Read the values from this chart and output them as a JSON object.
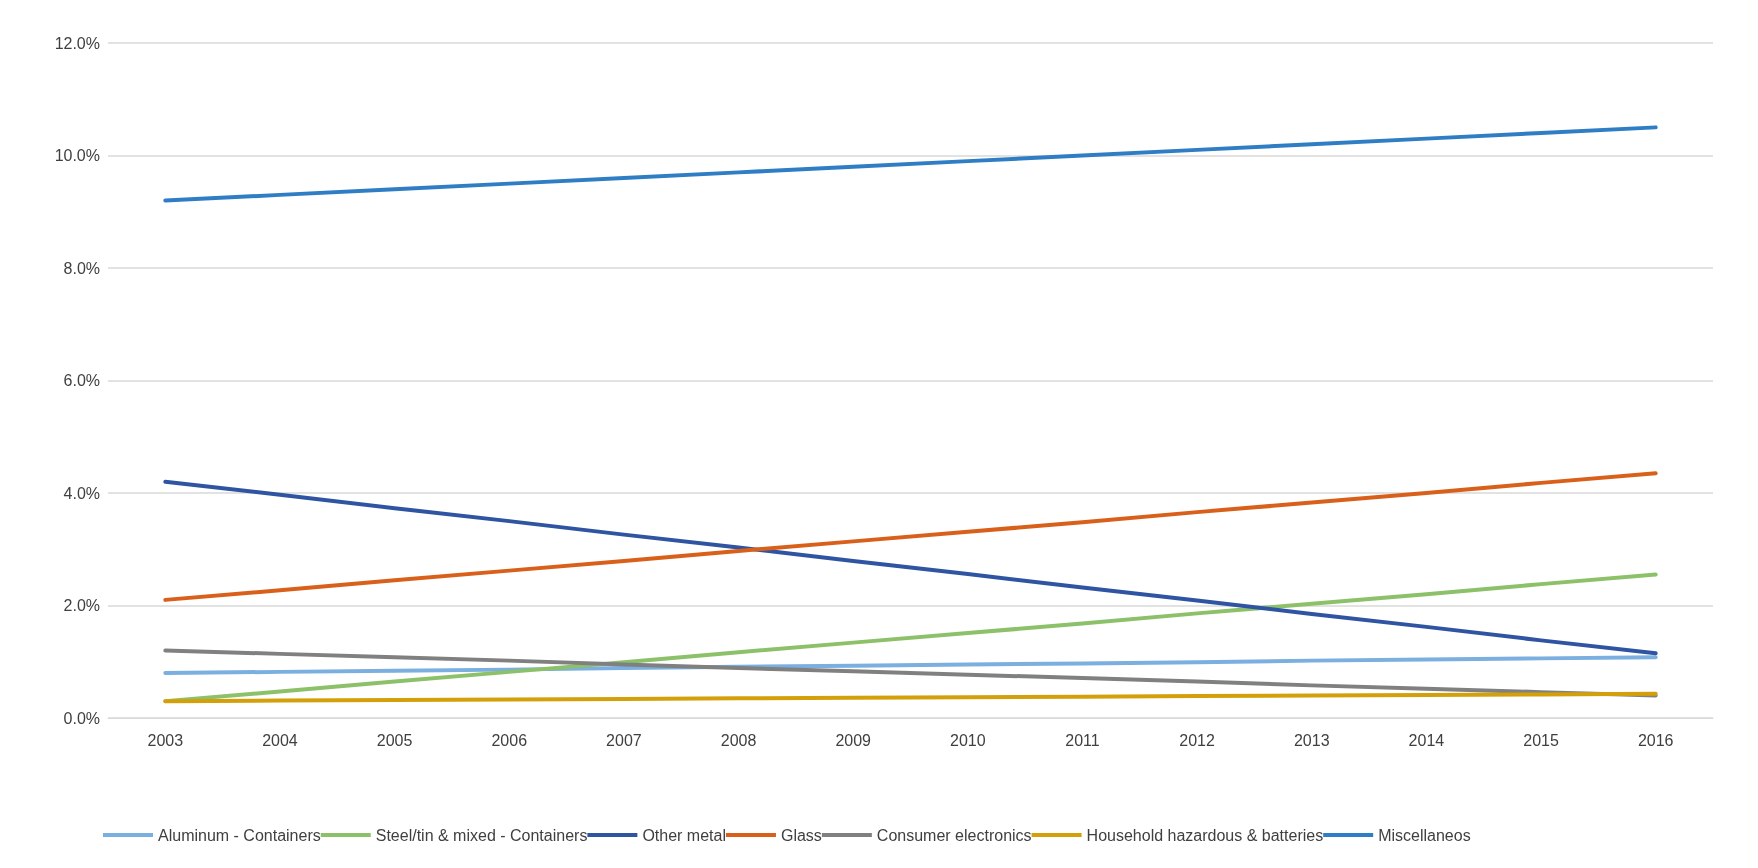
{
  "chart_data": {
    "type": "line",
    "categories": [
      "2003",
      "2004",
      "2005",
      "2006",
      "2007",
      "2008",
      "2009",
      "2010",
      "2011",
      "2012",
      "2013",
      "2014",
      "2015",
      "2016"
    ],
    "series": [
      {
        "name": "Aluminum - Containers",
        "color": "#7aafdf",
        "values": [
          0.8,
          0.82,
          0.84,
          0.86,
          0.89,
          0.91,
          0.93,
          0.95,
          0.97,
          0.99,
          1.02,
          1.04,
          1.06,
          1.08
        ]
      },
      {
        "name": "Steel/tin & mixed - Containers",
        "color": "#8cc16a",
        "values": [
          0.3,
          0.47,
          0.65,
          0.82,
          0.99,
          1.17,
          1.34,
          1.51,
          1.68,
          1.86,
          2.03,
          2.2,
          2.38,
          2.55
        ]
      },
      {
        "name": "Other metal",
        "color": "#2f54a2",
        "values": [
          4.2,
          3.97,
          3.73,
          3.5,
          3.26,
          3.03,
          2.79,
          2.56,
          2.32,
          2.09,
          1.85,
          1.62,
          1.38,
          1.15
        ]
      },
      {
        "name": "Glass",
        "color": "#d9601a",
        "values": [
          2.1,
          2.27,
          2.45,
          2.62,
          2.79,
          2.97,
          3.14,
          3.31,
          3.48,
          3.66,
          3.83,
          4.0,
          4.18,
          4.35
        ]
      },
      {
        "name": "Consumer electronics",
        "color": "#808080",
        "values": [
          1.2,
          1.14,
          1.08,
          1.02,
          0.95,
          0.89,
          0.83,
          0.77,
          0.71,
          0.65,
          0.58,
          0.52,
          0.46,
          0.4
        ]
      },
      {
        "name": "Household hazardous & batteries",
        "color": "#d4a00a",
        "values": [
          0.3,
          0.31,
          0.32,
          0.33,
          0.34,
          0.35,
          0.36,
          0.37,
          0.38,
          0.39,
          0.4,
          0.41,
          0.42,
          0.43
        ]
      },
      {
        "name": "Miscellaneos",
        "color": "#2f7ec5",
        "values": [
          9.2,
          9.3,
          9.4,
          9.5,
          9.6,
          9.7,
          9.8,
          9.9,
          10.0,
          10.1,
          10.2,
          10.3,
          10.4,
          10.5
        ]
      }
    ],
    "ylim": [
      0,
      12
    ],
    "yticks": [
      {
        "value": 0,
        "label": "0.0%"
      },
      {
        "value": 2,
        "label": "2.0%"
      },
      {
        "value": 4,
        "label": "4.0%"
      },
      {
        "value": 6,
        "label": "6.0%"
      },
      {
        "value": 8,
        "label": "8.0%"
      },
      {
        "value": 10,
        "label": "10.0%"
      },
      {
        "value": 12,
        "label": "12.0%"
      }
    ],
    "grid": "y",
    "legend": "bottom",
    "marker": "none",
    "line_style": "solid"
  }
}
